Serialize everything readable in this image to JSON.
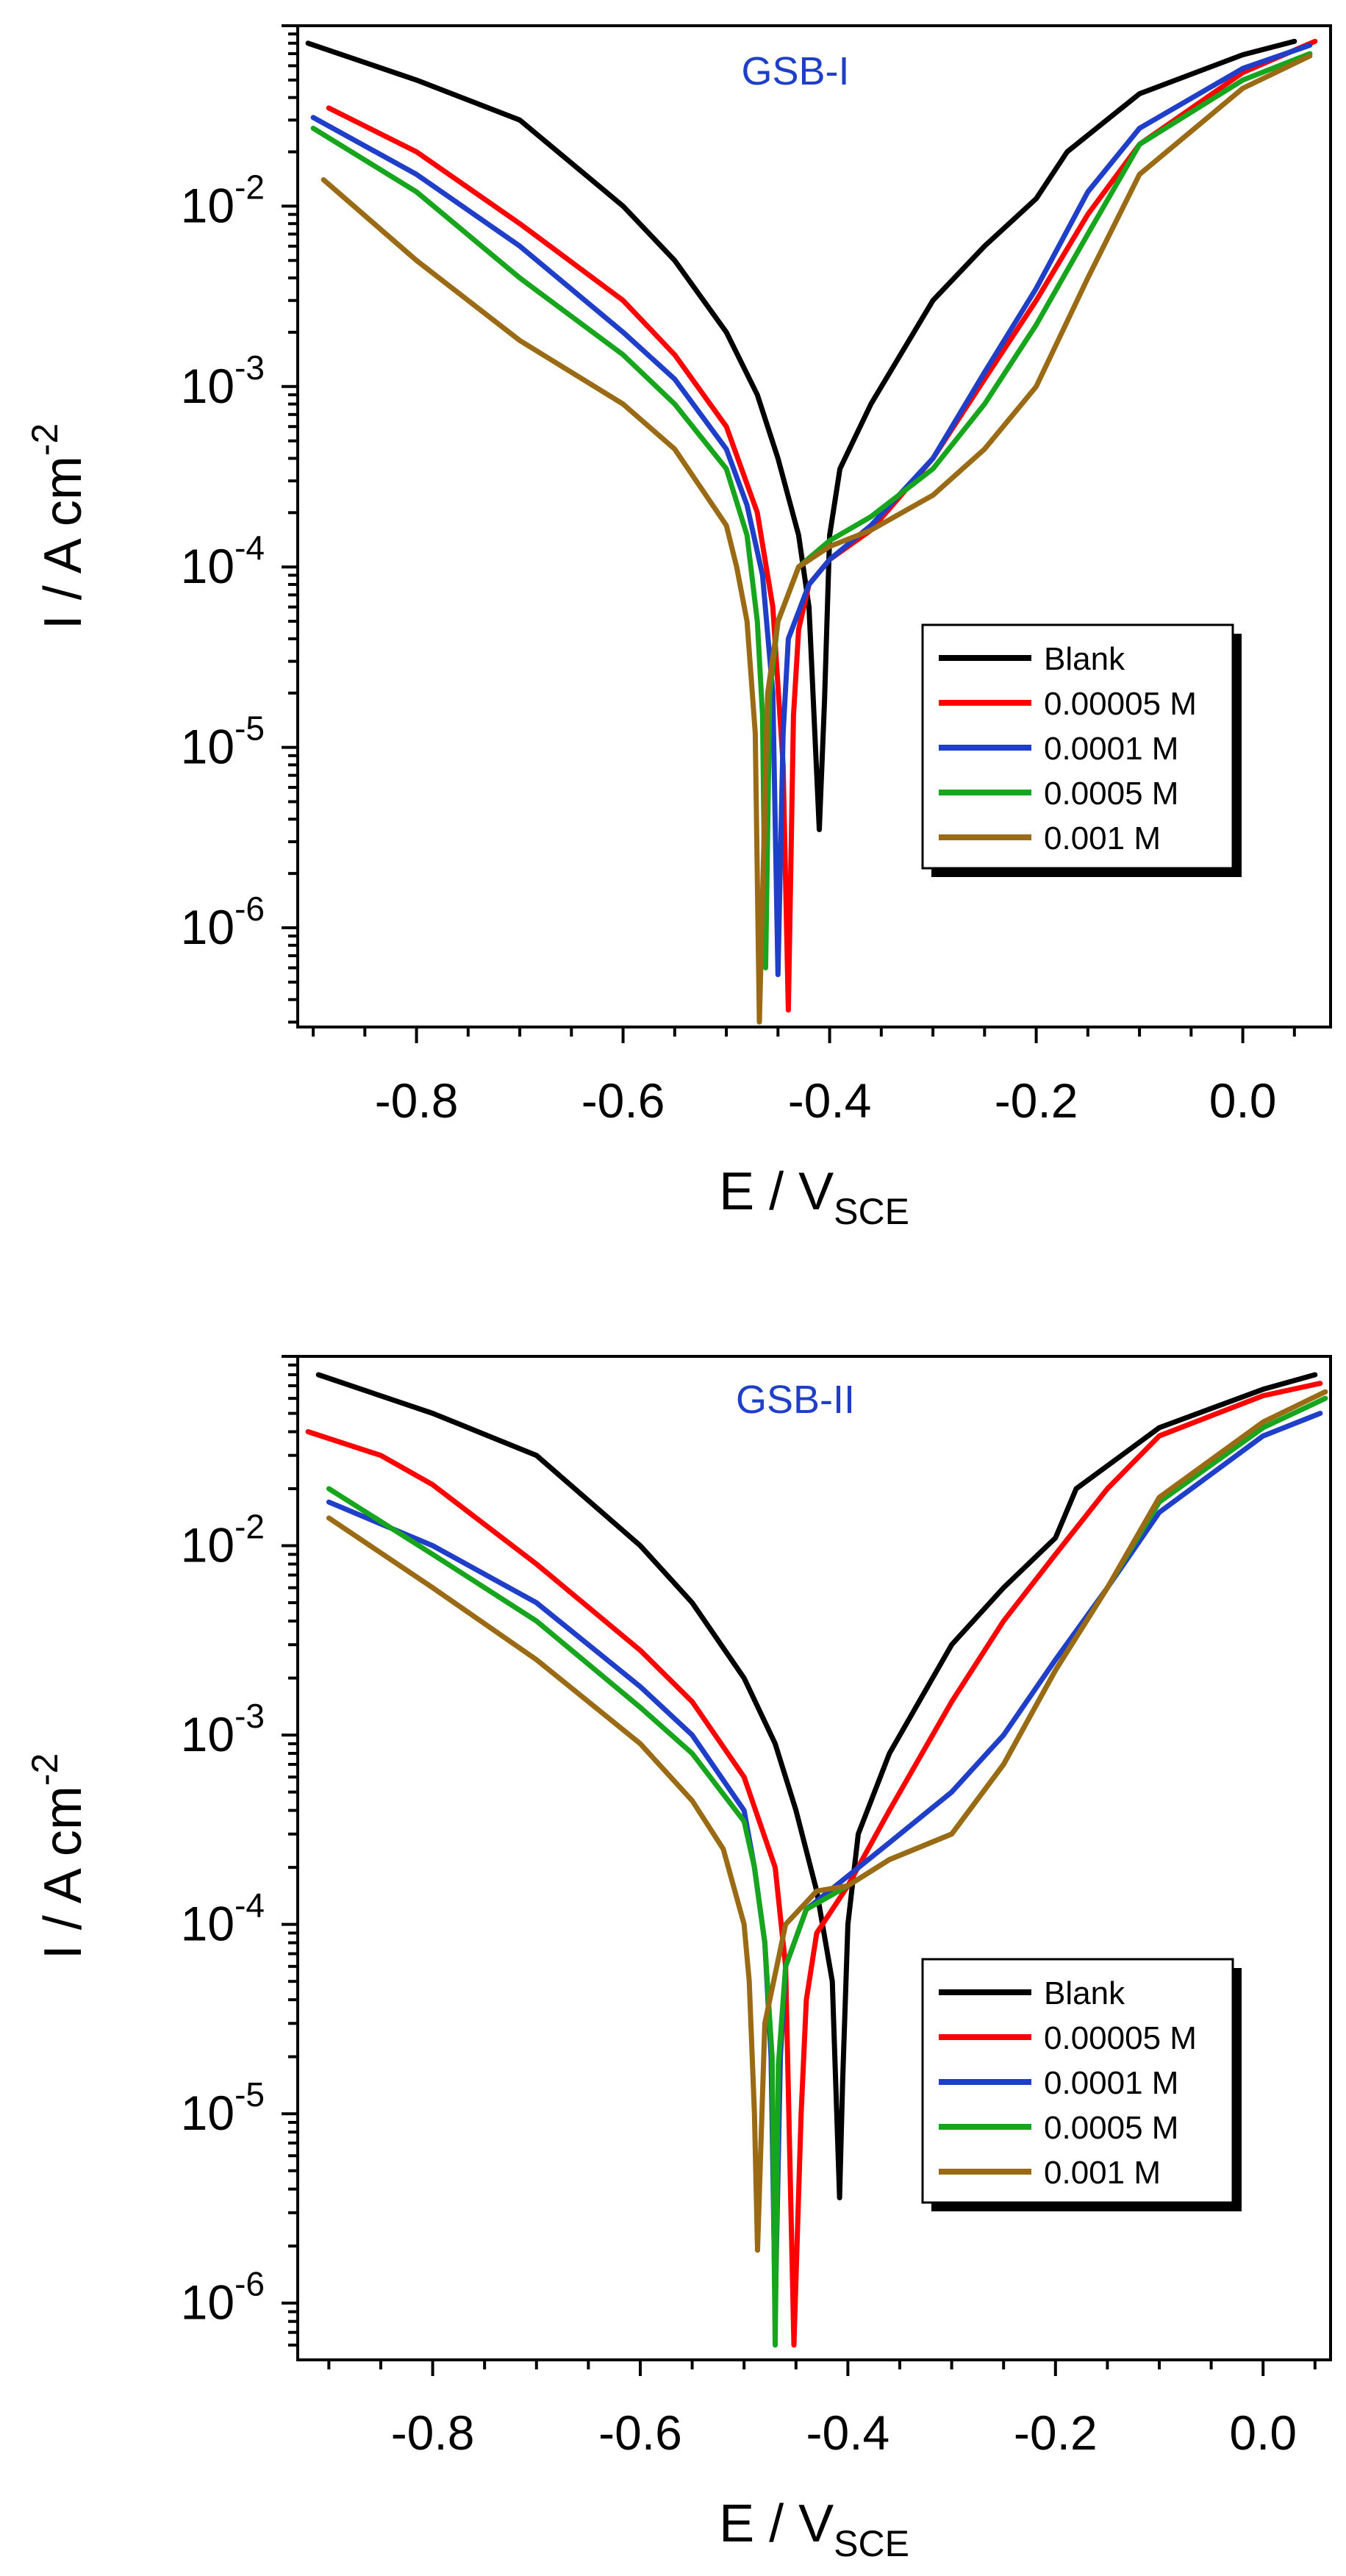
{
  "chart_data": [
    {
      "type": "line",
      "title": "GSB-I",
      "xlabel": "E / V",
      "xlabel_sub": "SCE",
      "ylabel": "I / A cm",
      "ylabel_sup": "-2",
      "yscale": "log",
      "xlim": [
        -0.915,
        0.085
      ],
      "ylim_exp": [
        -6.55,
        -1.0
      ],
      "xticks": [
        -0.8,
        -0.6,
        -0.4,
        -0.2,
        0.0
      ],
      "xtick_labels": [
        "-0.8",
        "-0.6",
        "-0.4",
        "-0.2",
        "0.0"
      ],
      "yticks_exp": [
        -6,
        -5,
        -4,
        -3,
        -2
      ],
      "grid": false,
      "legend_position": "lower-right",
      "series": [
        {
          "name": "Blank",
          "color": "#000000",
          "x": [
            -0.905,
            -0.8,
            -0.7,
            -0.6,
            -0.55,
            -0.5,
            -0.47,
            -0.45,
            -0.43,
            -0.42,
            -0.41,
            -0.405,
            -0.4,
            -0.39,
            -0.36,
            -0.3,
            -0.25,
            -0.2,
            -0.17,
            -0.1,
            0.0,
            0.05
          ],
          "y": [
            0.08,
            0.05,
            0.03,
            0.01,
            0.005,
            0.002,
            0.0009,
            0.0004,
            0.00015,
            6e-05,
            3.5e-06,
            1.8e-05,
            0.00015,
            0.00035,
            0.0008,
            0.003,
            0.006,
            0.011,
            0.02,
            0.042,
            0.069,
            0.082
          ]
        },
        {
          "name": "0.00005 M",
          "color": "#ff0000",
          "x": [
            -0.885,
            -0.8,
            -0.7,
            -0.6,
            -0.55,
            -0.5,
            -0.47,
            -0.455,
            -0.445,
            -0.44,
            -0.435,
            -0.43,
            -0.42,
            -0.4,
            -0.36,
            -0.3,
            -0.25,
            -0.2,
            -0.15,
            -0.1,
            0.0,
            0.07
          ],
          "y": [
            0.035,
            0.02,
            0.008,
            0.003,
            0.0015,
            0.0006,
            0.0002,
            6e-05,
            8e-06,
            3.5e-07,
            1.5e-05,
            4.5e-05,
            8e-05,
            0.00011,
            0.00016,
            0.0004,
            0.0011,
            0.003,
            0.009,
            0.022,
            0.055,
            0.082
          ]
        },
        {
          "name": "0.0001 M",
          "color": "#1f3fc8",
          "x": [
            -0.9,
            -0.8,
            -0.7,
            -0.6,
            -0.55,
            -0.5,
            -0.48,
            -0.465,
            -0.455,
            -0.45,
            -0.445,
            -0.44,
            -0.42,
            -0.4,
            -0.36,
            -0.3,
            -0.25,
            -0.2,
            -0.15,
            -0.1,
            0.0,
            0.065
          ],
          "y": [
            0.031,
            0.015,
            0.006,
            0.002,
            0.0011,
            0.00045,
            0.00022,
            9e-05,
            2e-05,
            5.5e-07,
            1.2e-05,
            4e-05,
            8e-05,
            0.00011,
            0.00017,
            0.0004,
            0.0012,
            0.0035,
            0.012,
            0.027,
            0.058,
            0.078
          ]
        },
        {
          "name": "0.0005 M",
          "color": "#16a51c",
          "x": [
            -0.9,
            -0.8,
            -0.7,
            -0.6,
            -0.55,
            -0.5,
            -0.48,
            -0.47,
            -0.465,
            -0.462,
            -0.458,
            -0.45,
            -0.43,
            -0.4,
            -0.36,
            -0.3,
            -0.25,
            -0.2,
            -0.15,
            -0.1,
            0.0,
            0.065
          ],
          "y": [
            0.027,
            0.012,
            0.004,
            0.0015,
            0.0008,
            0.00035,
            0.00015,
            5e-05,
            1.5e-05,
            6e-07,
            2e-05,
            5e-05,
            0.0001,
            0.00014,
            0.00019,
            0.00035,
            0.0008,
            0.0022,
            0.007,
            0.022,
            0.05,
            0.07
          ]
        },
        {
          "name": "0.001 M",
          "color": "#9b6a15",
          "x": [
            -0.89,
            -0.8,
            -0.7,
            -0.6,
            -0.55,
            -0.5,
            -0.49,
            -0.48,
            -0.472,
            -0.468,
            -0.46,
            -0.45,
            -0.43,
            -0.4,
            -0.36,
            -0.3,
            -0.25,
            -0.2,
            -0.15,
            -0.1,
            0.0,
            0.065
          ],
          "y": [
            0.014,
            0.005,
            0.0018,
            0.0008,
            0.00045,
            0.00017,
            0.0001,
            5e-05,
            1.2e-05,
            3e-07,
            2e-05,
            5e-05,
            0.0001,
            0.00013,
            0.00016,
            0.00025,
            0.00045,
            0.001,
            0.004,
            0.015,
            0.045,
            0.068
          ]
        }
      ]
    },
    {
      "type": "line",
      "title": "GSB-II",
      "xlabel": "E / V",
      "xlabel_sub": "SCE",
      "ylabel": "I / A cm",
      "ylabel_sup": "-2",
      "yscale": "log",
      "xlim": [
        -0.93,
        0.065
      ],
      "ylim_exp": [
        -6.3,
        -1.0
      ],
      "xticks": [
        -0.8,
        -0.6,
        -0.4,
        -0.2,
        0.0
      ],
      "xtick_labels": [
        "-0.8",
        "-0.6",
        "-0.4",
        "-0.2",
        "0.0"
      ],
      "yticks_exp": [
        -6,
        -5,
        -4,
        -3,
        -2
      ],
      "grid": false,
      "legend_position": "lower-right",
      "series": [
        {
          "name": "Blank",
          "color": "#000000",
          "x": [
            -0.91,
            -0.8,
            -0.7,
            -0.6,
            -0.55,
            -0.5,
            -0.47,
            -0.45,
            -0.43,
            -0.415,
            -0.408,
            -0.405,
            -0.4,
            -0.39,
            -0.36,
            -0.3,
            -0.25,
            -0.2,
            -0.18,
            -0.1,
            0.0,
            0.05
          ],
          "y": [
            0.08,
            0.05,
            0.03,
            0.01,
            0.005,
            0.002,
            0.0009,
            0.0004,
            0.00015,
            5e-05,
            3.6e-06,
            1.5e-05,
            0.0001,
            0.0003,
            0.0008,
            0.003,
            0.006,
            0.011,
            0.02,
            0.042,
            0.067,
            0.08
          ]
        },
        {
          "name": "0.00005 M",
          "color": "#ff0000",
          "x": [
            -0.92,
            -0.85,
            -0.8,
            -0.7,
            -0.6,
            -0.55,
            -0.5,
            -0.47,
            -0.46,
            -0.452,
            -0.445,
            -0.44,
            -0.43,
            -0.4,
            -0.36,
            -0.3,
            -0.25,
            -0.2,
            -0.15,
            -0.1,
            0.0,
            0.055
          ],
          "y": [
            0.04,
            0.03,
            0.021,
            0.008,
            0.0028,
            0.0015,
            0.0006,
            0.0002,
            6e-05,
            6e-07,
            1e-05,
            4e-05,
            9e-05,
            0.00016,
            0.0004,
            0.0015,
            0.004,
            0.009,
            0.02,
            0.038,
            0.062,
            0.072
          ]
        },
        {
          "name": "0.0001 M",
          "color": "#1f3fc8",
          "x": [
            -0.9,
            -0.8,
            -0.7,
            -0.6,
            -0.55,
            -0.5,
            -0.49,
            -0.48,
            -0.474,
            -0.47,
            -0.465,
            -0.46,
            -0.44,
            -0.4,
            -0.36,
            -0.3,
            -0.25,
            -0.2,
            -0.15,
            -0.1,
            0.0,
            0.055
          ],
          "y": [
            0.017,
            0.01,
            0.005,
            0.0018,
            0.001,
            0.0004,
            0.0002,
            8e-05,
            2e-05,
            9e-07,
            2e-05,
            6e-05,
            0.00012,
            0.00018,
            0.00027,
            0.0005,
            0.001,
            0.0025,
            0.006,
            0.015,
            0.038,
            0.05
          ]
        },
        {
          "name": "0.0005 M",
          "color": "#16a51c",
          "x": [
            -0.9,
            -0.8,
            -0.7,
            -0.6,
            -0.55,
            -0.5,
            -0.49,
            -0.48,
            -0.473,
            -0.47,
            -0.467,
            -0.46,
            -0.44,
            -0.4,
            -0.36,
            -0.3,
            -0.25,
            -0.2,
            -0.15,
            -0.1,
            0.0,
            0.06
          ],
          "y": [
            0.02,
            0.009,
            0.004,
            0.0014,
            0.0008,
            0.00035,
            0.0002,
            8e-05,
            2e-05,
            6e-07,
            1.8e-05,
            6e-05,
            0.00012,
            0.00016,
            0.00022,
            0.0003,
            0.0007,
            0.0022,
            0.006,
            0.017,
            0.042,
            0.06
          ]
        },
        {
          "name": "0.001 M",
          "color": "#9b6a15",
          "x": [
            -0.9,
            -0.8,
            -0.7,
            -0.6,
            -0.55,
            -0.52,
            -0.5,
            -0.495,
            -0.49,
            -0.487,
            -0.48,
            -0.46,
            -0.43,
            -0.4,
            -0.36,
            -0.3,
            -0.25,
            -0.2,
            -0.15,
            -0.1,
            0.0,
            0.06
          ],
          "y": [
            0.014,
            0.006,
            0.0025,
            0.0009,
            0.00045,
            0.00025,
            0.0001,
            5e-05,
            1e-05,
            1.9e-06,
            3e-05,
            0.0001,
            0.00015,
            0.00016,
            0.00022,
            0.0003,
            0.0007,
            0.0022,
            0.006,
            0.018,
            0.045,
            0.065
          ]
        }
      ]
    }
  ]
}
